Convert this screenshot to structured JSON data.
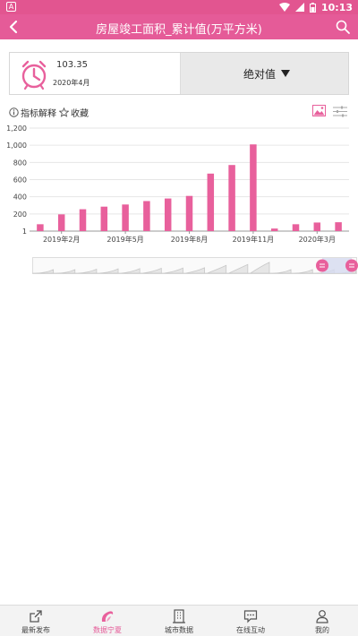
{
  "status_bar": {
    "time": "10:13",
    "app_icon": "A"
  },
  "header": {
    "title": "房屋竣工面积_累计值(万平方米)"
  },
  "summary": {
    "value": "103.35",
    "date": "2020年4月",
    "mode": "绝对值"
  },
  "tools": {
    "explain": "指标解释",
    "favorite": "收藏"
  },
  "chart_data": {
    "type": "bar",
    "categories": [
      "2019年1月",
      "2019年2月",
      "2019年3月",
      "2019年4月",
      "2019年5月",
      "2019年6月",
      "2019年7月",
      "2019年8月",
      "2019年9月",
      "2019年10月",
      "2019年11月",
      "2019年12月",
      "2020年2月",
      "2020年3月",
      "2020年4月"
    ],
    "values": [
      80,
      195,
      255,
      285,
      310,
      350,
      380,
      410,
      670,
      770,
      1010,
      30,
      80,
      100,
      103.35
    ],
    "xticks": [
      "2019年2月",
      "2019年5月",
      "2019年8月",
      "2019年11月",
      "2020年3月"
    ],
    "yticks": [
      "1",
      "200",
      "400",
      "600",
      "800",
      "1,000",
      "1,200"
    ],
    "ylim": [
      1,
      1200
    ],
    "color": "#e8609c",
    "grid": true
  },
  "tabs": [
    {
      "label": "最新发布",
      "icon": "share-icon"
    },
    {
      "label": "数据宁夏",
      "icon": "data-logo-icon",
      "active": true
    },
    {
      "label": "城市数据",
      "icon": "building-icon"
    },
    {
      "label": "在线互动",
      "icon": "chat-icon"
    },
    {
      "label": "我的",
      "icon": "user-icon"
    }
  ]
}
